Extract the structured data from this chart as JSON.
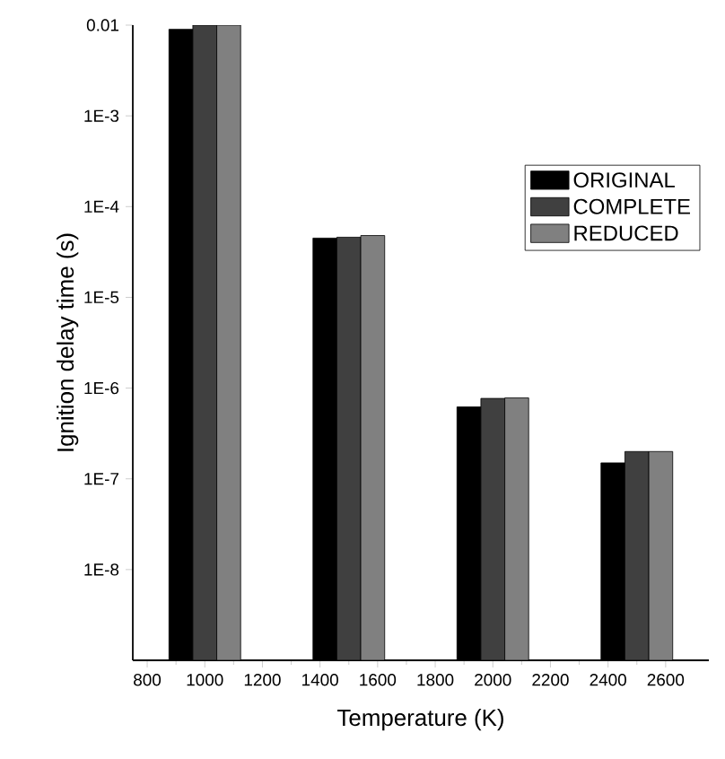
{
  "chart_data": {
    "type": "bar",
    "xlabel": "Temperature (K)",
    "ylabel": "Ignition delay time (s)",
    "log": "y",
    "legend": "right",
    "x": [
      1000,
      1500,
      2000,
      2500
    ],
    "series": [
      {
        "name": "ORIGINAL",
        "color": "#000000",
        "values": [
          0.009,
          4.5e-05,
          6.2e-07,
          1.5e-07
        ]
      },
      {
        "name": "COMPLETE",
        "color": "#404040",
        "values": [
          0.01,
          4.6e-05,
          7.7e-07,
          2e-07
        ]
      },
      {
        "name": "REDUCED",
        "color": "#808080",
        "values": [
          0.01,
          4.8e-05,
          7.8e-07,
          2e-07
        ]
      }
    ],
    "xlim": [
      750,
      2750
    ],
    "xticks": [
      800,
      1000,
      1200,
      1400,
      1600,
      1800,
      2000,
      2200,
      2400,
      2600
    ],
    "ylim": [
      1e-09,
      0.01
    ],
    "yticks": [
      {
        "value": 0.01,
        "label": "0.01"
      },
      {
        "value": 0.001,
        "label": "1E-3"
      },
      {
        "value": 0.0001,
        "label": "1E-4"
      },
      {
        "value": 1e-05,
        "label": "1E-5"
      },
      {
        "value": 1e-06,
        "label": "1E-6"
      },
      {
        "value": 1e-07,
        "label": "1E-7"
      },
      {
        "value": 1e-08,
        "label": "1E-8"
      }
    ]
  }
}
